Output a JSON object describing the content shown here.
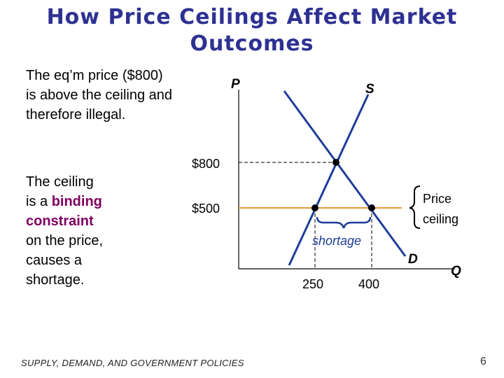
{
  "title": "How Price Ceilings Affect Market Outcomes",
  "left_text": {
    "p1": "The eq’m price ($800) is above the ceiling and therefore illegal.",
    "p2_lines": [
      "The ceiling",
      "is a",
      "binding",
      "constraint",
      "on the price,",
      "causes a",
      "shortage."
    ]
  },
  "graph": {
    "axis_p": "P",
    "axis_q": "Q",
    "supply_label": "S",
    "demand_label": "D",
    "price_eq": "$800",
    "price_ceiling": "$500",
    "q_supplied": "250",
    "q_demanded": "400",
    "ceiling_label": [
      "Price",
      "ceiling"
    ],
    "shortage_label": "shortage",
    "colors": {
      "curves": "#1f3d99",
      "ceiling": "#e09a3a",
      "title": "#2e3192",
      "highlight": "#800060"
    }
  },
  "footer": "SUPPLY, DEMAND, AND GOVERNMENT POLICIES",
  "page_number": "6"
}
